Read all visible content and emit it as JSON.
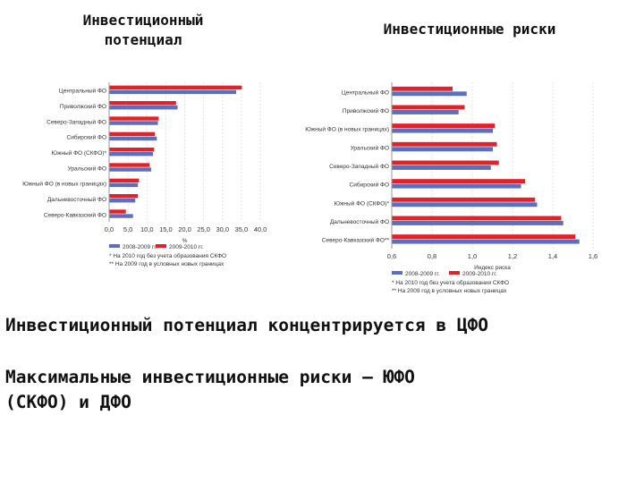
{
  "headings": {
    "left_line1": "Инвестиционный",
    "left_line2": "потенциал",
    "right": "Инвестиционные риски"
  },
  "statements": {
    "s1": "Инвестиционный потенциал концентрируется в ЦФО",
    "s2_line1": "Максимальные инвестиционные риски – ЮФО",
    "s2_line2": "(СКФО) и ДФО"
  },
  "colors": {
    "series_a": "#5b6fbe",
    "series_b": "#e0232a",
    "grid": "#dddddd"
  },
  "chart_data": [
    {
      "type": "bar",
      "orientation": "horizontal",
      "categories": [
        "Центральный ФО",
        "Приволжский ФО",
        "Северо-Западный ФО",
        "Сибирский ФО",
        "Южный ФО (СКФО)*",
        "Уральский ФО",
        "Южный ФО (в новых границах)",
        "Дальневосточный ФО",
        "Северо-Кавказский ФО"
      ],
      "series": [
        {
          "name": "2008-2009 гг.",
          "values": [
            33.5,
            18.0,
            12.8,
            12.5,
            11.5,
            11.0,
            7.5,
            6.8,
            6.2
          ]
        },
        {
          "name": "2009-2010 гг.",
          "values": [
            35.0,
            17.6,
            13.0,
            12.0,
            11.8,
            10.6,
            7.8,
            7.5,
            4.3
          ]
        }
      ],
      "xlim": [
        0,
        40
      ],
      "xticks": [
        "0,0",
        "5,0",
        "10,0",
        "15,0",
        "20,0",
        "25,0",
        "30,0",
        "35,0",
        "40,0"
      ],
      "xlabel": "%",
      "footnotes": [
        "* На 2010 год без учета образования СКФО",
        "** На 2009 год в условных новых границах"
      ],
      "grid": true,
      "legend": "bottom"
    },
    {
      "type": "bar",
      "orientation": "horizontal",
      "categories": [
        "Центральный ФО",
        "Приволжский ФО",
        "Южный ФО (в новых границах)",
        "Уральский ФО",
        "Северо-Западный ФО",
        "Сибирский ФО",
        "Южный ФО (СКФО)*",
        "Дальневосточный ФО",
        "Северо-Кавказский ФО**"
      ],
      "series": [
        {
          "name": "2008-2009 гг.",
          "values": [
            0.97,
            0.93,
            1.1,
            1.1,
            1.09,
            1.24,
            1.32,
            1.45,
            1.53
          ]
        },
        {
          "name": "2009-2010 гг.",
          "values": [
            0.9,
            0.96,
            1.11,
            1.12,
            1.13,
            1.26,
            1.31,
            1.44,
            1.51
          ]
        }
      ],
      "xlim": [
        0.6,
        1.6
      ],
      "xticks": [
        "0,6",
        "0,8",
        "1,0",
        "1,2",
        "1,4",
        "1,6"
      ],
      "xlabel": "Индекс риска",
      "footnotes": [
        "* На 2010 год без учета образования СКФО",
        "** На 2009 год в условных новых границах"
      ],
      "grid": true,
      "legend": "bottom"
    }
  ]
}
